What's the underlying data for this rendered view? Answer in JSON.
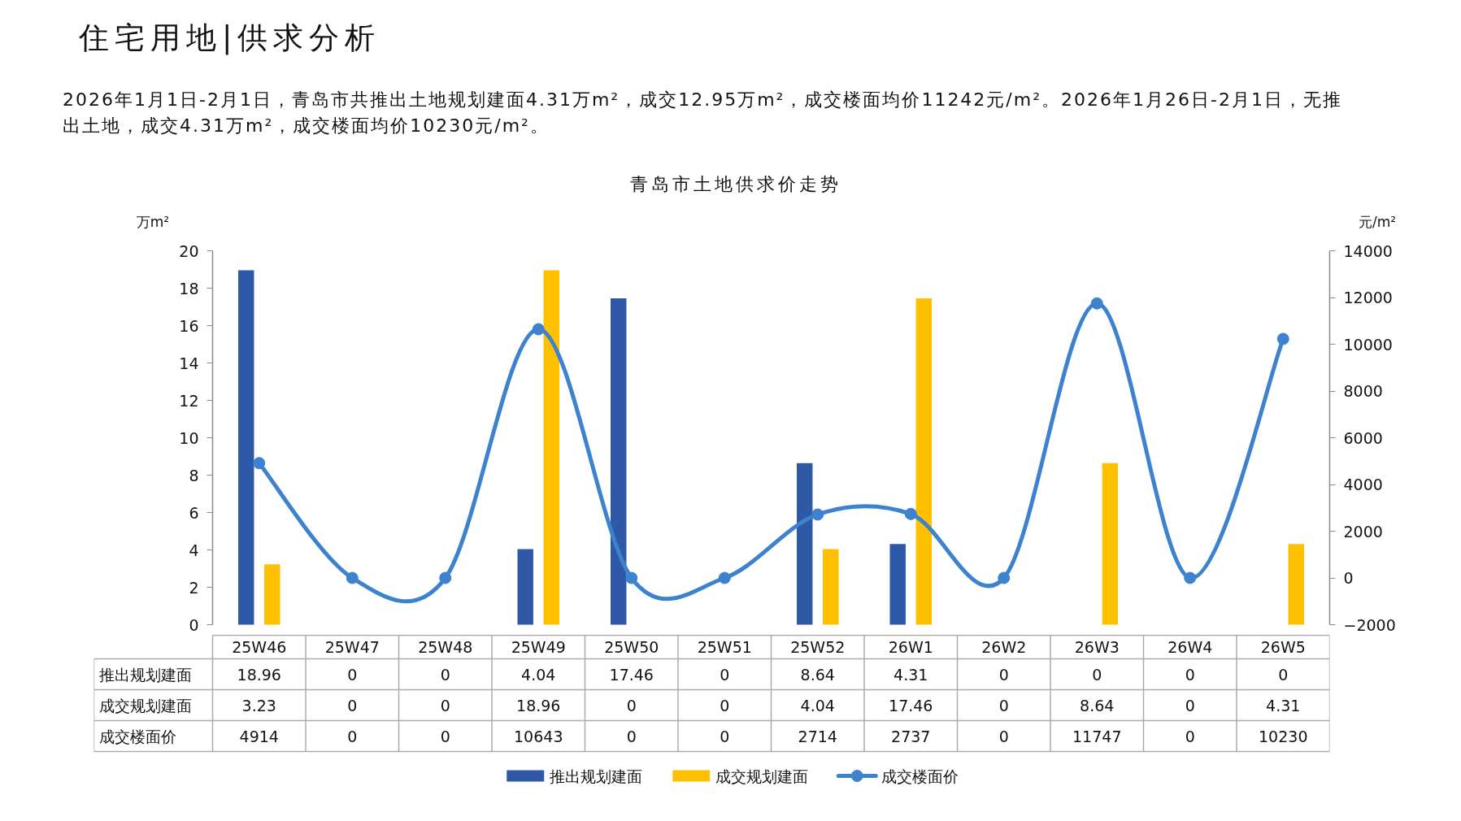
{
  "chart_data": {
    "type": "bar",
    "title": "青岛市土地供求价走势",
    "annotations": [
      "住宅用地|供求分析",
      "2026年1月1日-2月1日，青岛市共推出土地规划建面4.31万m²，成交12.95万m²，成交楼面均价11242元/m²。2026年1月26日-2月1日，无推出土地，成交4.31万m²，成交楼面均价10230元/m²。"
    ],
    "ylabel": "万m²",
    "y2label": "元/m²",
    "categories": [
      "25W46",
      "25W47",
      "25W48",
      "25W49",
      "25W50",
      "25W51",
      "25W52",
      "26W1",
      "26W2",
      "26W3",
      "26W4",
      "26W5"
    ],
    "series": [
      {
        "name": "推出规划建面",
        "color": "#2f58a6",
        "values": [
          18.96,
          0,
          0,
          4.04,
          17.46,
          0,
          8.64,
          4.31,
          0,
          0,
          0,
          0
        ]
      },
      {
        "name": "成交规划建面",
        "color": "#ffc000",
        "values": [
          3.23,
          0,
          0,
          18.96,
          0,
          0,
          4.04,
          17.46,
          0,
          8.64,
          0,
          4.31
        ]
      },
      {
        "name": "成交楼面价",
        "type": "line",
        "axis": "y2",
        "color": "#3c82cf",
        "values": [
          4914,
          0,
          0,
          10643,
          0,
          0,
          2714,
          2737,
          0,
          11747,
          0,
          10230
        ]
      }
    ],
    "ylim": [
      0,
      20
    ],
    "yticks": [
      0,
      2,
      4,
      6,
      8,
      10,
      12,
      14,
      16,
      18,
      20
    ],
    "y2lim": [
      -2000,
      14000
    ],
    "y2ticks": [
      -2000,
      0,
      2000,
      4000,
      6000,
      8000,
      10000,
      12000,
      14000
    ],
    "marker": "circle",
    "data_labels": true,
    "legend": "bottom"
  }
}
